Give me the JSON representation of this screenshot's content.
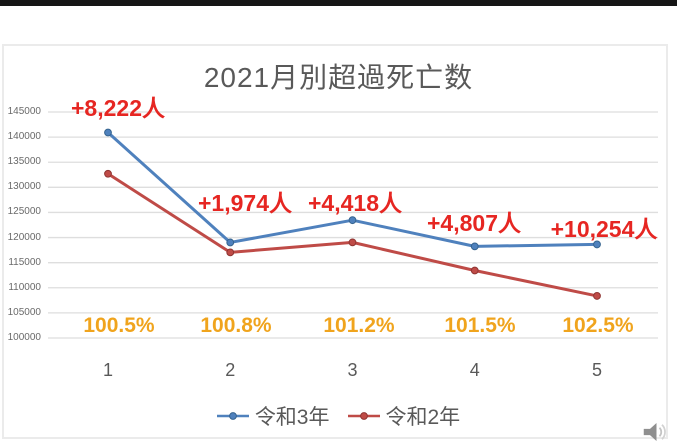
{
  "page": {
    "background": "#ffffff",
    "top_bar_color": "#161616",
    "frame_border_color": "#ebebeb"
  },
  "chart_data": {
    "type": "line",
    "title": "2021月別超過死亡数",
    "categories": [
      "1",
      "2",
      "3",
      "4",
      "5"
    ],
    "series": [
      {
        "name": "令和3年",
        "color": "#4f81bd",
        "marker_stroke": "#36648f",
        "values": [
          140920,
          119025,
          123463,
          118248,
          118634
        ]
      },
      {
        "name": "令和2年",
        "color": "#bf4b47",
        "marker_stroke": "#8f3532",
        "values": [
          132698,
          117051,
          119045,
          113441,
          108380
        ]
      }
    ],
    "ylim": [
      100000,
      145000
    ],
    "ystep": 5000,
    "grid": true,
    "gridline_color": "#dedede",
    "legend_position": "bottom",
    "annotations": {
      "diff_labels": {
        "color": "#e62622",
        "items": [
          "+8,222人",
          "+1,974人",
          "+4,418人",
          "+4,807人",
          "+10,254人"
        ]
      },
      "pct_labels": {
        "color": "#f0a41d",
        "items": [
          "100.5%",
          "100.8%",
          "101.2%",
          "101.5%",
          "102.5%"
        ]
      }
    }
  },
  "icons": {
    "speaker": {
      "name": "speaker-icon",
      "color": "#8f8f8f",
      "wave_color": "#c4c4c4"
    }
  }
}
